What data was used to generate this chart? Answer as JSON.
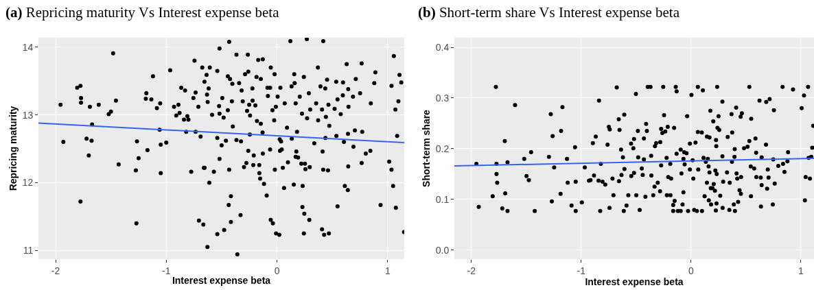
{
  "chart_data": [
    {
      "type": "scatter",
      "title": "(a) Repricing maturity Vs Interest expense beta",
      "xlabel": "Interest expense beta",
      "ylabel": "Repricing maturity",
      "xlim": [
        -2.155,
        1.15
      ],
      "ylim": [
        10.87,
        14.14
      ],
      "xticks": [
        -2,
        -1,
        0,
        1
      ],
      "yticks": [
        11,
        12,
        13,
        14
      ],
      "grid": true,
      "marker": "circle",
      "series": [
        {
          "color": "#000000",
          "x": [
            -1.955,
            -1.93,
            -1.805,
            -1.775,
            -1.77,
            -1.77,
            -1.775,
            -1.72,
            -1.7,
            -1.69,
            -1.675,
            -1.67,
            -1.61,
            -1.52,
            -1.5,
            -1.48,
            -1.455,
            -1.43,
            -1.275,
            -1.27,
            -1.265,
            -1.25,
            -1.185,
            -1.18,
            -1.17,
            -1.135,
            -1.12,
            -1.085,
            -1.06,
            -1.055,
            -1.05,
            -1.05,
            -1.0,
            -0.965,
            -0.93,
            -0.91,
            -0.89,
            -0.88,
            -0.865,
            -0.84,
            -0.83,
            -0.82,
            -0.81,
            -0.8,
            -0.775,
            -0.755,
            -0.745,
            -0.735,
            -0.735,
            -0.71,
            -0.705,
            -0.69,
            -0.675,
            -0.665,
            -0.66,
            -0.655,
            -0.636,
            -0.632,
            -0.626,
            -0.617,
            -0.607,
            -0.611,
            -0.628,
            -0.654,
            -0.57,
            -0.586,
            -0.539,
            -0.539,
            -0.539,
            -0.523,
            -0.519,
            -0.519,
            -0.519,
            -0.5,
            -0.494,
            -0.482,
            -0.477,
            -0.461,
            -0.444,
            -0.444,
            -0.432,
            -0.432,
            -0.436,
            -0.424,
            -0.416,
            -0.416,
            -0.407,
            -0.403,
            -0.399,
            -0.366,
            -0.366,
            -0.358,
            -0.342,
            -0.329,
            -0.325,
            -0.319,
            -0.309,
            -0.298,
            -0.288,
            -0.276,
            -0.27,
            -0.263,
            -0.259,
            -0.259,
            -0.251,
            -0.243,
            -0.245,
            -0.222,
            -0.22,
            -0.214,
            -0.21,
            -0.195,
            -0.185,
            -0.181,
            -0.169,
            -0.16,
            -0.159,
            -0.152,
            -0.146,
            -0.146,
            -0.128,
            -0.128,
            -0.13,
            -0.117,
            -0.093,
            -0.086,
            -0.082,
            -0.062,
            -0.062,
            -0.056,
            -0.056,
            -0.037,
            -0.041,
            -0.025,
            -0.021,
            -0.019,
            -0.008,
            -0.01,
            0.006,
            0.021,
            0.031,
            0.025,
            0.037,
            0.027,
            0.043,
            0.053,
            0.064,
            0.07,
            0.091,
            0.099,
            0.121,
            0.132,
            0.134,
            0.152,
            0.156,
            0.16,
            0.169,
            0.175,
            0.169,
            0.181,
            0.191,
            0.206,
            0.22,
            0.226,
            0.232,
            0.23,
            0.243,
            0.243,
            0.247,
            0.253,
            0.257,
            0.27,
            0.272,
            0.288,
            0.296,
            0.292,
            0.3,
            0.337,
            0.354,
            0.37,
            0.372,
            0.393,
            0.407,
            0.412,
            0.418,
            0.418,
            0.407,
            0.426,
            0.436,
            0.442,
            0.438,
            0.453,
            0.461,
            0.469,
            0.465,
            0.473,
            0.521,
            0.535,
            0.537,
            0.547,
            0.547,
            0.576,
            0.595,
            0.597,
            0.605,
            0.63,
            0.644,
            0.646,
            0.642,
            0.644,
            0.613,
            0.64,
            0.687,
            0.691,
            0.712,
            0.704,
            0.751,
            0.765,
            0.765,
            0.77,
            0.802,
            0.844,
            0.848,
            0.879,
            0.889,
            0.936,
            1.014,
            1.035,
            1.049,
            1.056,
            1.035,
            1.07,
            1.074,
            1.086,
            1.097,
            1.107,
            1.123,
            1.148
          ],
          "values": [
            13.15,
            12.6,
            13.4,
            13.43,
            13.25,
            13.18,
            11.72,
            12.65,
            12.4,
            13.12,
            12.62,
            12.86,
            13.15,
            13.01,
            13.05,
            13.91,
            13.21,
            12.27,
            12.18,
            11.4,
            12.61,
            12.36,
            13.24,
            13.32,
            12.48,
            13.23,
            13.57,
            13.1,
            12.78,
            13.17,
            12.56,
            12.14,
            12.59,
            13.66,
            13.12,
            12.99,
            13.15,
            13.03,
            13.4,
            12.93,
            13.36,
            12.75,
            12.98,
            12.93,
            12.16,
            13.25,
            13.8,
            13.33,
            12.75,
            13.12,
            11.44,
            12.68,
            13.7,
            11.38,
            12.22,
            13.49,
            13.59,
            13.3,
            13.19,
            13.39,
            13.7,
            12.0,
            11.05,
            12.22,
            12.16,
            13.0,
            13.65,
            12.66,
            11.24,
            13.13,
            13.98,
            13.02,
            12.35,
            12.55,
            13.25,
            12.96,
            11.3,
            12.62,
            13.57,
            13.07,
            14.08,
            12.19,
            11.67,
            13.53,
            11.8,
            11.42,
            13.2,
            13.46,
            12.83,
            13.89,
            12.63,
            10.94,
            13.47,
            11.52,
            12.61,
            13.36,
            13.2,
            12.23,
            13.6,
            12.29,
            13.06,
            13.89,
            13.64,
            12.47,
            13.15,
            12.99,
            12.71,
            13.39,
            13.21,
            12.26,
            12.4,
            13.14,
            13.56,
            12.91,
            13.81,
            12.26,
            12.14,
            12.06,
            12.87,
            13.53,
            13.82,
            12.43,
            12.74,
            11.98,
            11.81,
            13.4,
            13.28,
            13.4,
            12.49,
            11.45,
            13.7,
            11.4,
            13.07,
            12.92,
            13.6,
            12.19,
            11.25,
            13.12,
            13.27,
            11.23,
            13.4,
            12.64,
            12.61,
            12.47,
            12.49,
            12.22,
            11.92,
            13.17,
            12.81,
            12.3,
            14.09,
            13.42,
            12.65,
            11.97,
            13.6,
            13.47,
            13.17,
            12.46,
            12.38,
            12.75,
            12.37,
            13.27,
            12.28,
            13.02,
            11.95,
            11.64,
            13.56,
            11.25,
            11.54,
            12.28,
            12.2,
            14.12,
            12.95,
            13.32,
            12.23,
            11.45,
            13.08,
            12.58,
            13.17,
            13.7,
            12.92,
            13.42,
            13.08,
            12.46,
            12.19,
            14.09,
            11.31,
            11.23,
            13.39,
            12.97,
            12.66,
            13.52,
            12.18,
            11.25,
            13.15,
            12.84,
            13.09,
            13.49,
            12.69,
            13.23,
            11.65,
            13.01,
            13.29,
            13.48,
            12.6,
            13.75,
            13.38,
            13.12,
            12.72,
            12.24,
            11.95,
            11.89,
            13.27,
            12.53,
            13.53,
            12.77,
            13.32,
            13.76,
            12.29,
            12.75,
            12.43,
            12.47,
            13.17,
            13.47,
            13.63,
            11.67,
            12.31,
            12.19,
            11.95,
            13.87,
            13.43,
            13.08,
            11.63,
            12.69,
            13.2,
            13.59,
            13.48,
            11.27
          ]
        },
        {
          "type": "line",
          "color": "#3366ff",
          "marker": "none",
          "x": [
            -2.155,
            1.15
          ],
          "values": [
            12.88,
            12.59
          ]
        }
      ]
    },
    {
      "type": "scatter",
      "title": "(b) Short-term share Vs Interest expense beta",
      "xlabel": "Interest expense beta",
      "ylabel": "Short-term share",
      "xlim": [
        -2.155,
        1.12
      ],
      "ylim": [
        -0.018,
        0.419
      ],
      "xticks": [
        -2,
        -1,
        0,
        1
      ],
      "yticks": [
        {
          "value": 0,
          "label": "0.0"
        },
        0.1,
        0.2,
        0.3,
        0.4
      ],
      "grid": true,
      "marker": "circle",
      "series": [
        {
          "color": "#000000",
          "x": [
            -1.954,
            -1.933,
            -1.806,
            -1.777,
            -1.771,
            -1.771,
            -1.765,
            -1.719,
            -1.696,
            -1.692,
            -1.671,
            -1.671,
            -1.602,
            -1.519,
            -1.498,
            -1.477,
            -1.456,
            -1.423,
            -1.294,
            -1.277,
            -1.267,
            -1.26,
            -1.246,
            -1.188,
            -1.183,
            -1.171,
            -1.129,
            -1.123,
            -1.088,
            -1.056,
            -1.05,
            -1.05,
            -0.994,
            -0.967,
            -0.929,
            -0.915,
            -0.894,
            -0.883,
            -0.867,
            -0.842,
            -0.838,
            -0.827,
            -0.821,
            -0.806,
            -0.781,
            -0.76,
            -0.748,
            -0.74,
            -0.742,
            -0.715,
            -0.706,
            -0.676,
            -0.658,
            -0.651,
            -0.656,
            -0.637,
            -0.633,
            -0.62,
            -0.608,
            -0.612,
            -0.606,
            -0.587,
            -0.571,
            -0.546,
            -0.544,
            -0.525,
            -0.519,
            -0.519,
            -0.502,
            -0.498,
            -0.484,
            -0.481,
            -0.467,
            -0.448,
            -0.44,
            -0.429,
            -0.429,
            -0.415,
            -0.409,
            -0.402,
            -0.394,
            -0.369,
            -0.363,
            -0.361,
            -0.344,
            -0.332,
            -0.328,
            -0.317,
            -0.303,
            -0.282,
            -0.28,
            -0.272,
            -0.272,
            -0.261,
            -0.253,
            -0.245,
            -0.234,
            -0.222,
            -0.22,
            -0.212,
            -0.207,
            -0.189,
            -0.187,
            -0.181,
            -0.162,
            -0.162,
            -0.154,
            -0.149,
            -0.139,
            -0.131,
            -0.131,
            -0.12,
            -0.094,
            -0.094,
            -0.087,
            -0.077,
            -0.069,
            -0.069,
            -0.062,
            -0.058,
            -0.041,
            -0.035,
            -0.027,
            -0.01,
            -0.01,
            0.004,
            0.015,
            0.021,
            0.029,
            0.041,
            0.054,
            0.062,
            0.062,
            0.066,
            0.098,
            0.1,
            0.108,
            0.114,
            0.124,
            0.135,
            0.145,
            0.145,
            0.153,
            0.16,
            0.162,
            0.168,
            0.168,
            0.176,
            0.18,
            0.183,
            0.195,
            0.203,
            0.207,
            0.218,
            0.222,
            0.226,
            0.228,
            0.23,
            0.232,
            0.234,
            0.238,
            0.241,
            0.251,
            0.257,
            0.266,
            0.286,
            0.286,
            0.288,
            0.293,
            0.328,
            0.334,
            0.349,
            0.353,
            0.369,
            0.373,
            0.375,
            0.39,
            0.396,
            0.398,
            0.4,
            0.411,
            0.415,
            0.421,
            0.429,
            0.442,
            0.452,
            0.454,
            0.456,
            0.463,
            0.483,
            0.515,
            0.531,
            0.531,
            0.544,
            0.546,
            0.548,
            0.575,
            0.587,
            0.593,
            0.595,
            0.624,
            0.635,
            0.637,
            0.643,
            0.643,
            0.683,
            0.685,
            0.693,
            0.699,
            0.706,
            0.716,
            0.745,
            0.749,
            0.755,
            0.762,
            0.795,
            0.834,
            0.838,
            0.851,
            0.878,
            0.884,
            0.929,
            1.008,
            1.029,
            1.037,
            1.044,
            1.066,
            1.071,
            1.083,
            1.095,
            1.104,
            1.112
          ],
          "values": [
            0.17,
            0.085,
            0.106,
            0.322,
            0.17,
            0.15,
            0.133,
            0.082,
            0.215,
            0.112,
            0.173,
            0.077,
            0.286,
            0.18,
            0.146,
            0.138,
            0.193,
            0.077,
            0.184,
            0.268,
            0.096,
            0.225,
            0.163,
            0.111,
            0.235,
            0.282,
            0.18,
            0.133,
            0.088,
            0.203,
            0.135,
            0.077,
            0.094,
            0.163,
            0.137,
            0.138,
            0.211,
            0.147,
            0.224,
            0.137,
            0.295,
            0.077,
            0.17,
            0.135,
            0.129,
            0.208,
            0.243,
            0.238,
            0.083,
            0.141,
            0.108,
            0.321,
            0.258,
            0.237,
            0.136,
            0.198,
            0.148,
            0.183,
            0.267,
            0.077,
            0.16,
            0.088,
            0.108,
            0.21,
            0.146,
            0.201,
            0.219,
            0.152,
            0.308,
            0.108,
            0.235,
            0.183,
            0.079,
            0.161,
            0.148,
            0.22,
            0.179,
            0.105,
            0.249,
            0.235,
            0.322,
            0.322,
            0.186,
            0.147,
            0.108,
            0.125,
            0.205,
            0.211,
            0.133,
            0.116,
            0.213,
            0.239,
            0.167,
            0.231,
            0.322,
            0.266,
            0.234,
            0.182,
            0.108,
            0.243,
            0.144,
            0.17,
            0.108,
            0.141,
            0.089,
            0.077,
            0.241,
            0.097,
            0.322,
            0.313,
            0.19,
            0.077,
            0.198,
            0.077,
            0.151,
            0.09,
            0.114,
            0.18,
            0.193,
            0.169,
            0.191,
            0.264,
            0.077,
            0.21,
            0.159,
            0.306,
            0.177,
            0.141,
            0.079,
            0.212,
            0.077,
            0.322,
            0.233,
            0.159,
            0.232,
            0.077,
            0.315,
            0.182,
            0.106,
            0.174,
            0.224,
            0.133,
            0.18,
            0.165,
            0.098,
            0.222,
            0.153,
            0.275,
            0.122,
            0.09,
            0.122,
            0.254,
            0.13,
            0.117,
            0.157,
            0.078,
            0.217,
            0.205,
            0.092,
            0.15,
            0.322,
            0.241,
            0.264,
            0.237,
            0.107,
            0.293,
            0.185,
            0.083,
            0.135,
            0.153,
            0.223,
            0.079,
            0.133,
            0.268,
            0.174,
            0.232,
            0.09,
            0.184,
            0.199,
            0.077,
            0.281,
            0.151,
            0.141,
            0.095,
            0.118,
            0.263,
            0.111,
            0.144,
            0.27,
            0.201,
            0.204,
            0.322,
            0.215,
            0.165,
            0.106,
            0.259,
            0.161,
            0.22,
            0.192,
            0.144,
            0.295,
            0.143,
            0.086,
            0.183,
            0.128,
            0.208,
            0.292,
            0.121,
            0.159,
            0.143,
            0.298,
            0.09,
            0.179,
            0.276,
            0.131,
            0.166,
            0.322,
            0.17,
            0.154,
            0.175,
            0.193,
            0.317,
            0.28,
            0.305,
            0.098,
            0.144,
            0.322,
            0.182,
            0.141,
            0.184,
            0.202,
            0.245
          ]
        },
        {
          "type": "line",
          "color": "#3366ff",
          "marker": "none",
          "x": [
            -2.155,
            1.12
          ],
          "values": [
            0.166,
            0.181
          ]
        }
      ]
    }
  ]
}
